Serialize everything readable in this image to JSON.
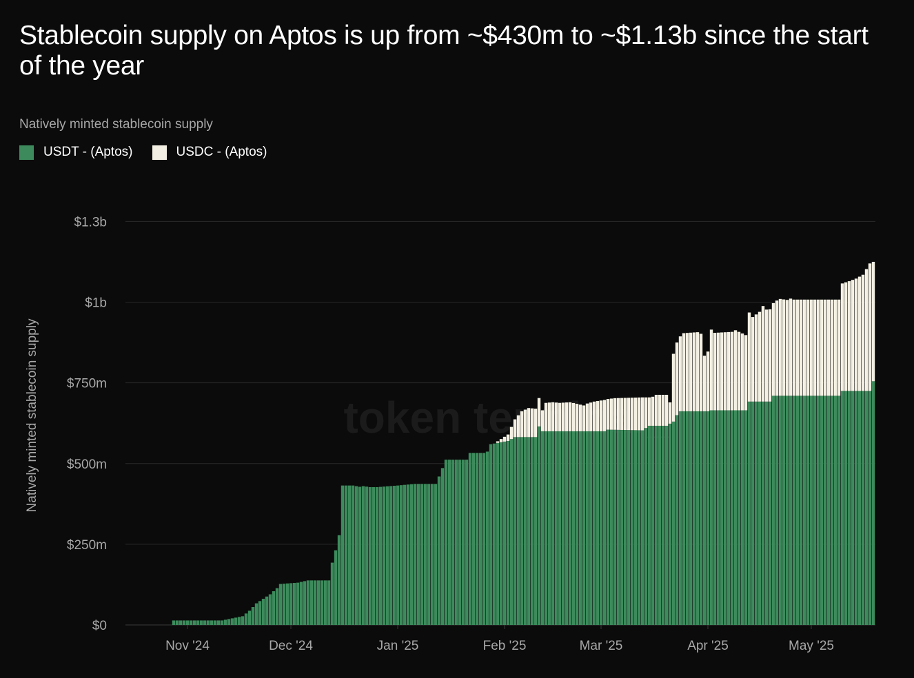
{
  "title": "Stablecoin supply on Aptos is up from ~$430m to ~$1.13b since the start of the year",
  "colors": {
    "background": "#0b0b0b",
    "usdt": "#3d8b5c",
    "usdc": "#f3f0e3",
    "grid": "#2a2a2a",
    "tick": "#a8a8a8"
  },
  "watermark": "token terminal_",
  "chart_data": {
    "type": "bar",
    "stacked": true,
    "subtitle": "Natively minted stablecoin supply",
    "ylabel": "Natively minted stablecoin supply",
    "xlabel": "",
    "ylim": [
      0,
      1300
    ],
    "yticks": [
      {
        "value": 0,
        "label": "$0"
      },
      {
        "value": 250,
        "label": "$250m"
      },
      {
        "value": 500,
        "label": "$500m"
      },
      {
        "value": 750,
        "label": "$750m"
      },
      {
        "value": 1000,
        "label": "$1b"
      },
      {
        "value": 1250,
        "label": "$1.3b"
      }
    ],
    "xlim": [
      0,
      215
    ],
    "xticks": [
      {
        "value": 18,
        "label": "Nov '24"
      },
      {
        "value": 48,
        "label": "Dec '24"
      },
      {
        "value": 79,
        "label": "Jan '25"
      },
      {
        "value": 110,
        "label": "Feb '25"
      },
      {
        "value": 138,
        "label": "Mar '25"
      },
      {
        "value": 169,
        "label": "Apr '25"
      },
      {
        "value": 199,
        "label": "May '25"
      }
    ],
    "grid": true,
    "legend_position": "top-left",
    "series": [
      {
        "name": "USDT - (Aptos)",
        "color": "#3d8b5c",
        "points": [
          [
            14,
            14
          ],
          [
            28,
            14
          ],
          [
            34,
            27
          ],
          [
            36,
            44
          ],
          [
            38,
            67
          ],
          [
            42,
            95
          ],
          [
            44,
            114
          ],
          [
            45,
            127
          ],
          [
            50,
            131
          ],
          [
            53,
            138
          ],
          [
            59,
            138
          ],
          [
            59.5,
            178
          ],
          [
            60.5,
            208
          ],
          [
            62,
            278
          ],
          [
            63,
            432
          ],
          [
            66,
            432
          ],
          [
            68,
            428
          ],
          [
            69,
            430
          ],
          [
            71,
            427
          ],
          [
            73,
            427
          ],
          [
            79,
            432
          ],
          [
            84,
            437
          ],
          [
            90,
            437
          ],
          [
            91,
            460
          ],
          [
            93,
            512
          ],
          [
            99,
            512
          ],
          [
            100,
            533
          ],
          [
            104,
            533
          ],
          [
            105,
            537
          ],
          [
            106,
            560
          ],
          [
            111,
            570
          ],
          [
            113,
            582
          ],
          [
            119,
            582
          ],
          [
            120,
            615
          ],
          [
            121,
            600
          ],
          [
            139,
            600
          ],
          [
            140,
            605
          ],
          [
            150,
            603
          ],
          [
            152,
            617
          ],
          [
            157,
            617
          ],
          [
            159,
            630
          ],
          [
            160,
            650
          ],
          [
            161,
            662
          ],
          [
            169,
            662
          ],
          [
            170,
            665
          ],
          [
            180,
            665
          ],
          [
            181,
            692
          ],
          [
            187,
            692
          ],
          [
            188,
            710
          ],
          [
            207,
            710
          ],
          [
            208,
            725
          ],
          [
            216,
            725
          ],
          [
            217,
            755
          ]
        ]
      },
      {
        "name": "USDC - (Aptos)",
        "color": "#f3f0e3",
        "points": [
          [
            107,
            0
          ],
          [
            111,
            20
          ],
          [
            113,
            55
          ],
          [
            115,
            80
          ],
          [
            117,
            90
          ],
          [
            119,
            88
          ],
          [
            120,
            88
          ],
          [
            121,
            65
          ],
          [
            122,
            88
          ],
          [
            124,
            90
          ],
          [
            126,
            88
          ],
          [
            129,
            90
          ],
          [
            131,
            85
          ],
          [
            133,
            80
          ],
          [
            134,
            86
          ],
          [
            136,
            92
          ],
          [
            139,
            97
          ],
          [
            140,
            95
          ],
          [
            142,
            98
          ],
          [
            146,
            100
          ],
          [
            150,
            102
          ],
          [
            152,
            88
          ],
          [
            153,
            90
          ],
          [
            154,
            96
          ],
          [
            157,
            96
          ],
          [
            158,
            66
          ],
          [
            159,
            210
          ],
          [
            160,
            225
          ],
          [
            161,
            232
          ],
          [
            162,
            242
          ],
          [
            166,
            245
          ],
          [
            167,
            240
          ],
          [
            168,
            172
          ],
          [
            169,
            185
          ],
          [
            170,
            250
          ],
          [
            171,
            240
          ],
          [
            176,
            243
          ],
          [
            177,
            248
          ],
          [
            180,
            233
          ],
          [
            181,
            276
          ],
          [
            182,
            262
          ],
          [
            184,
            278
          ],
          [
            185,
            296
          ],
          [
            186,
            285
          ],
          [
            188,
            287
          ],
          [
            189,
            295
          ],
          [
            190,
            300
          ],
          [
            192,
            297
          ],
          [
            193,
            301
          ],
          [
            194,
            298
          ],
          [
            195,
            298
          ],
          [
            207,
            298
          ],
          [
            208,
            333
          ],
          [
            210,
            340
          ],
          [
            212,
            348
          ],
          [
            214,
            360
          ],
          [
            216,
            395
          ],
          [
            217,
            370
          ]
        ]
      }
    ]
  }
}
